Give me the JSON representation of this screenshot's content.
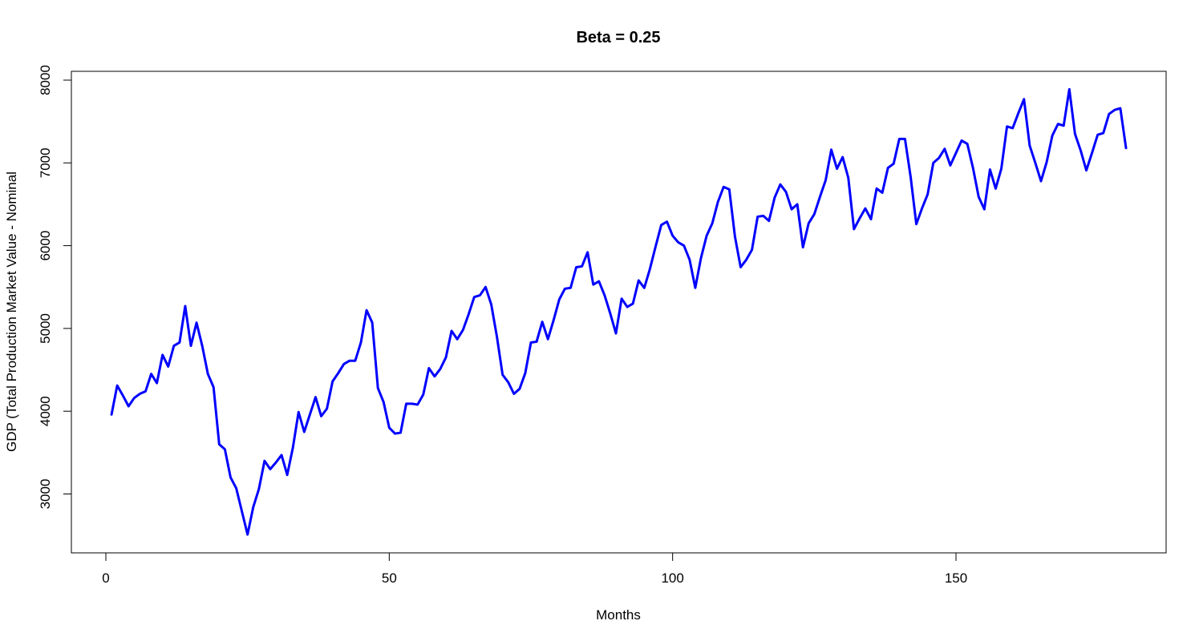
{
  "chart_data": {
    "type": "line",
    "title": "Beta = 0.25",
    "xlabel": "Months",
    "ylabel": "GDP (Total Production Market Value - Nominal",
    "xlim": [
      1,
      180
    ],
    "ylim": [
      2500,
      7900
    ],
    "x_ticks": [
      0,
      50,
      100,
      150
    ],
    "y_ticks": [
      3000,
      4000,
      5000,
      6000,
      7000,
      8000
    ],
    "grid": false,
    "line_color": "#0000ff",
    "series": [
      {
        "values": [
          3960,
          4310,
          4190,
          4060,
          4160,
          4210,
          4240,
          4450,
          4340,
          4680,
          4540,
          4790,
          4830,
          5270,
          4790,
          5070,
          4790,
          4450,
          4290,
          3600,
          3540,
          3200,
          3070,
          2790,
          2510,
          2840,
          3060,
          3400,
          3300,
          3380,
          3470,
          3230,
          3560,
          3990,
          3750,
          3960,
          4170,
          3940,
          4030,
          4360,
          4460,
          4570,
          4610,
          4610,
          4830,
          5220,
          5070,
          4280,
          4110,
          3800,
          3730,
          3740,
          4090,
          4090,
          4080,
          4200,
          4520,
          4420,
          4510,
          4650,
          4970,
          4870,
          4980,
          5170,
          5380,
          5400,
          5500,
          5290,
          4900,
          4440,
          4350,
          4210,
          4270,
          4460,
          4830,
          4840,
          5080,
          4870,
          5100,
          5350,
          5480,
          5490,
          5740,
          5750,
          5920,
          5530,
          5570,
          5400,
          5180,
          4940,
          5360,
          5260,
          5300,
          5580,
          5490,
          5720,
          5990,
          6250,
          6290,
          6120,
          6040,
          6000,
          5830,
          5490,
          5850,
          6120,
          6270,
          6530,
          6710,
          6680,
          6110,
          5740,
          5830,
          5950,
          6350,
          6360,
          6300,
          6580,
          6740,
          6650,
          6440,
          6500,
          5980,
          6270,
          6380,
          6590,
          6790,
          7160,
          6930,
          7070,
          6820,
          6200,
          6330,
          6450,
          6320,
          6690,
          6640,
          6940,
          6990,
          7290,
          7290,
          6830,
          6260,
          6450,
          6620,
          7000,
          7060,
          7170,
          6970,
          7120,
          7270,
          7230,
          6940,
          6590,
          6440,
          6920,
          6690,
          6930,
          7440,
          7420,
          7600,
          7770,
          7210,
          7000,
          6780,
          7010,
          7330,
          7470,
          7450,
          7890,
          7350,
          7150,
          6910,
          7120,
          7340,
          7360,
          7590,
          7640,
          7660,
          7180
        ]
      }
    ]
  }
}
